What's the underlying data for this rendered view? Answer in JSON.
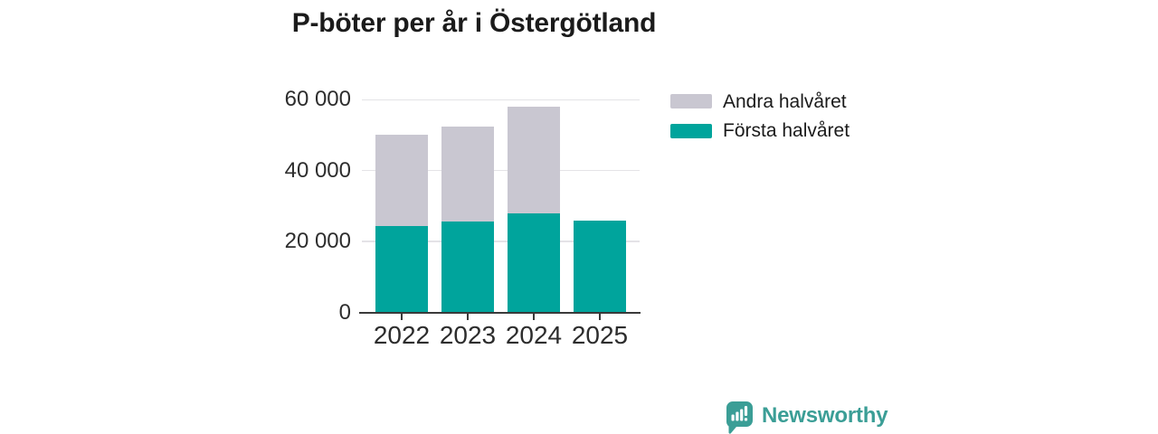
{
  "title": "P-böter per år i Östergötland",
  "colors": {
    "first_half": "#00a49c",
    "second_half": "#c9c7d1",
    "grid": "#e4e3e7",
    "axis": "#3a3a3a",
    "title_text": "#1b1b1b",
    "tick_text": "#2e2e2e",
    "brand": "#3b9e96"
  },
  "y_axis": {
    "ticks": [
      {
        "value": 0,
        "label": "0"
      },
      {
        "value": 20000,
        "label": "20 000"
      },
      {
        "value": 40000,
        "label": "40 000"
      },
      {
        "value": 60000,
        "label": "60 000"
      }
    ]
  },
  "legend": [
    {
      "label": "Andra halvåret",
      "color": "#c9c7d1"
    },
    {
      "label": "Första halvåret",
      "color": "#00a49c"
    }
  ],
  "chart_data": {
    "type": "bar",
    "stacked": true,
    "title": "P-böter per år i Östergötland",
    "categories": [
      "2022",
      "2023",
      "2024",
      "2025"
    ],
    "series": [
      {
        "name": "Första halvåret",
        "color": "#00a49c",
        "values": [
          24300,
          25700,
          28000,
          25800
        ]
      },
      {
        "name": "Andra halvåret",
        "color": "#c9c7d1",
        "values": [
          25800,
          26800,
          30100,
          0
        ]
      }
    ],
    "totals": [
      50100,
      52500,
      58100,
      25800
    ],
    "xlabel": "",
    "ylabel": "",
    "ylim": [
      0,
      62000
    ],
    "grid": "horizontal",
    "legend_position": "right"
  },
  "branding": {
    "logo_text": "Newsworthy",
    "logo_icon": "bar-chart-speech-bubble-icon"
  }
}
